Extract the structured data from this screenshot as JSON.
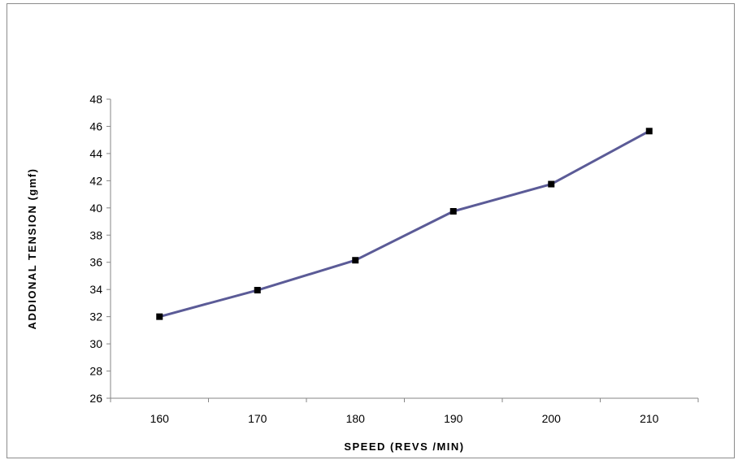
{
  "chart_data": {
    "type": "line",
    "title": "",
    "xlabel": "SPEED (REVS /MIN)",
    "ylabel": "ADDIONAL TENSION (gmf)",
    "categories": [
      160,
      170,
      180,
      190,
      200,
      210
    ],
    "series": [
      {
        "values": [
          32.0,
          33.95,
          36.15,
          39.75,
          41.75,
          45.65
        ],
        "color": "#5b5b97",
        "marker": "square",
        "marker_color": "#000000"
      }
    ],
    "ylim": [
      26,
      48
    ],
    "ytick_step": 2,
    "grid": false,
    "legend": "none"
  }
}
